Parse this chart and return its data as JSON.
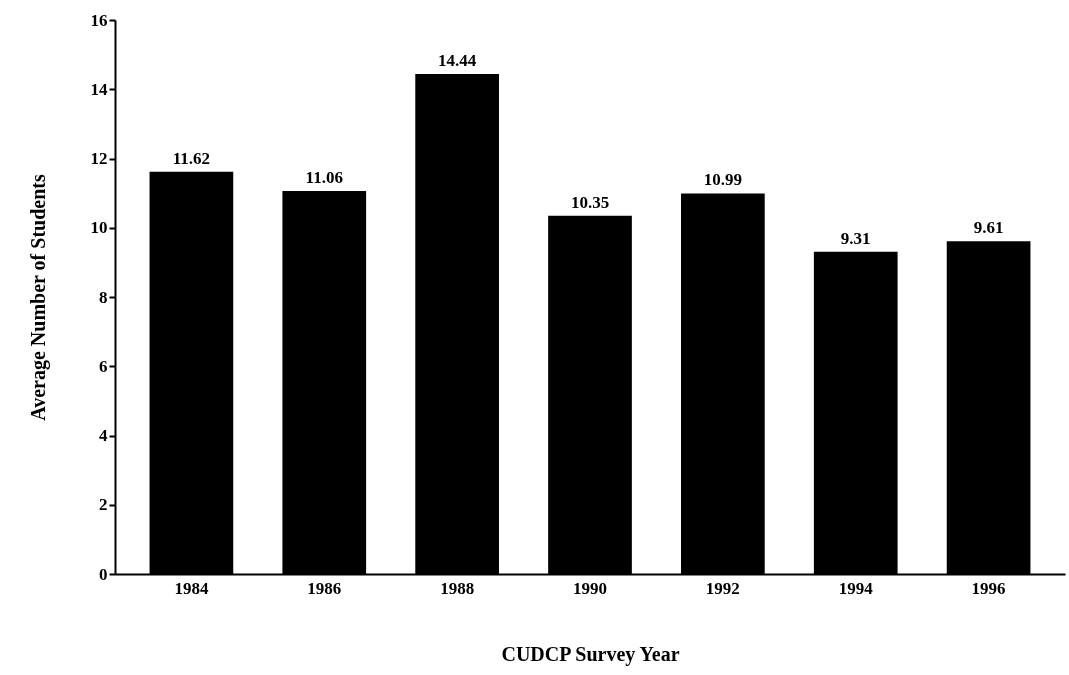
{
  "chart_data": {
    "type": "bar",
    "xlabel": "CUDCP Survey Year",
    "ylabel": "Average Number of Students",
    "categories": [
      "1984",
      "1986",
      "1988",
      "1990",
      "1992",
      "1994",
      "1996"
    ],
    "values": [
      11.62,
      11.06,
      14.44,
      10.35,
      10.99,
      9.31,
      9.61
    ],
    "color": "#000000",
    "ylim": [
      0,
      16
    ],
    "yticks": [
      0,
      2,
      4,
      6,
      8,
      10,
      12,
      14,
      16
    ],
    "grid": false,
    "data_labels": true
  }
}
